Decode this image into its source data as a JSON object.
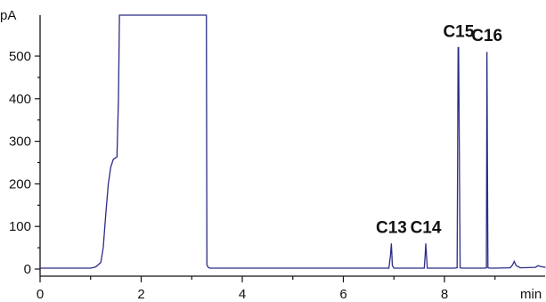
{
  "chart_data": {
    "type": "line",
    "title": "",
    "xlabel": "min",
    "ylabel": "pA",
    "xlim": [
      0,
      10.0
    ],
    "ylim": [
      -10,
      600
    ],
    "x_ticks": [
      0,
      2,
      4,
      6,
      8
    ],
    "y_ticks": [
      0,
      100,
      200,
      300,
      400,
      500
    ],
    "grid": false,
    "legend": "none",
    "line_color": "#2b2b86",
    "series": [
      {
        "x": [
          0.0,
          1.0,
          1.1,
          1.2,
          1.25,
          1.3,
          1.35,
          1.4,
          1.45,
          1.5,
          1.52,
          1.55,
          1.57,
          1.6,
          1.7,
          2.0,
          2.5,
          3.0,
          3.2,
          3.25,
          3.27,
          3.29,
          3.3,
          3.32,
          3.34,
          3.36,
          3.5,
          4.0,
          5.0,
          6.0,
          6.8,
          6.9,
          6.93,
          6.95,
          6.97,
          7.0,
          7.1,
          7.5,
          7.6,
          7.62,
          7.63,
          7.66,
          7.7,
          7.8,
          8.2,
          8.25,
          8.27,
          8.28,
          8.31,
          8.35,
          8.5,
          8.8,
          8.83,
          8.84,
          8.86,
          8.9,
          9.0,
          9.3,
          9.35,
          9.38,
          9.42,
          9.5,
          9.8,
          9.85,
          9.9,
          10.0
        ],
        "y": [
          2,
          2,
          5,
          15,
          50,
          130,
          200,
          240,
          258,
          262,
          263,
          400,
          600,
          600,
          600,
          600,
          600,
          600,
          600,
          600,
          600,
          600,
          10,
          5,
          3,
          2,
          2,
          2,
          2,
          2,
          2,
          2,
          30,
          60,
          8,
          2,
          2,
          2,
          2,
          35,
          60,
          2,
          2,
          2,
          2,
          3,
          520,
          520,
          3,
          2,
          2,
          2,
          3,
          510,
          3,
          2,
          2,
          3,
          10,
          18,
          8,
          3,
          4,
          8,
          6,
          4
        ]
      }
    ],
    "annotations": [
      {
        "text": "C13",
        "x": 6.95,
        "y": 60
      },
      {
        "text": "C14",
        "x": 7.63,
        "y": 60
      },
      {
        "text": "C15",
        "x": 8.28,
        "y": 520
      },
      {
        "text": "C16",
        "x": 8.84,
        "y": 510
      }
    ]
  }
}
